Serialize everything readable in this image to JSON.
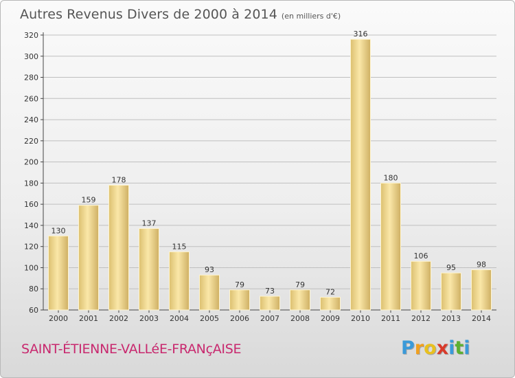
{
  "header": {
    "title": "Autres Revenus Divers de 2000 à 2014",
    "subtitle": "(en milliers d'€)"
  },
  "footer": {
    "commune": "SAINT-ÉTIENNE-VALLéE-FRANçAISE",
    "logo_letters": [
      "P",
      "r",
      "o",
      "x",
      "i",
      "t",
      "i"
    ],
    "logo_colors": [
      "#3a9ad9",
      "#f0a020",
      "#e8c020",
      "#d83a2a",
      "#3a9ad9",
      "#5cb030",
      "#3a9ad9"
    ]
  },
  "chart_data": {
    "type": "bar",
    "title": "Autres Revenus Divers de 2000 à 2014",
    "subtitle": "(en milliers d'€)",
    "categories": [
      "2000",
      "2001",
      "2002",
      "2003",
      "2004",
      "2005",
      "2006",
      "2007",
      "2008",
      "2009",
      "2010",
      "2011",
      "2012",
      "2013",
      "2014"
    ],
    "values": [
      130,
      159,
      178,
      137,
      115,
      93,
      79,
      73,
      79,
      72,
      316,
      180,
      106,
      95,
      98
    ],
    "ylim": [
      60,
      320
    ],
    "yticks": [
      60,
      80,
      100,
      120,
      140,
      160,
      180,
      200,
      220,
      240,
      260,
      280,
      300,
      320
    ],
    "grid": true,
    "bar_color": "#e8cf86",
    "xlabel": "",
    "ylabel": ""
  }
}
